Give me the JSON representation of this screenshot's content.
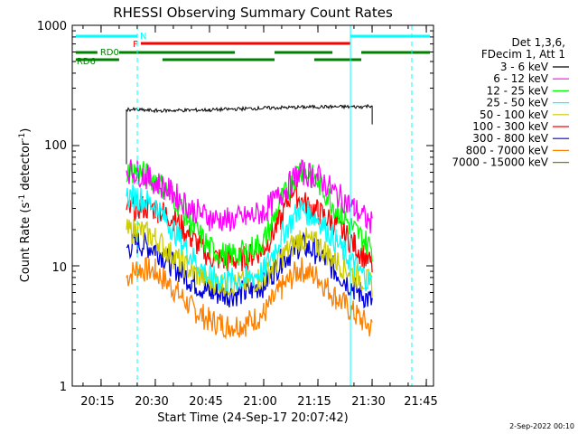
{
  "chart_data": {
    "type": "line",
    "title": "RHESSI Observing Summary Count Rates",
    "xlabel": "Start Time (24-Sep-17 20:07:42)",
    "ylabel_main": "Count Rate (s",
    "ylabel_sup1": "-1",
    "ylabel_mid": " detector",
    "ylabel_sup2": "-1",
    "ylabel_end": ")",
    "yscale": "log",
    "ylim": [
      1,
      1000
    ],
    "xlim_minutes": [
      20.117,
      21.783
    ],
    "x_ticks": [
      "20:15",
      "20:30",
      "20:45",
      "21:00",
      "21:15",
      "21:30",
      "21:45"
    ],
    "y_ticks": [
      "1",
      "10",
      "100",
      "1000"
    ],
    "legend_header": [
      "Det 1,3,6,",
      "FDecim 1, Att 1"
    ],
    "legend_position": "right",
    "series": [
      {
        "name": "3 - 6 keV",
        "color": "#000000",
        "points": [
          [
            20.367,
            70
          ],
          [
            20.367,
            200
          ],
          [
            20.5,
            195
          ],
          [
            20.75,
            198
          ],
          [
            21.0,
            205
          ],
          [
            21.25,
            210
          ],
          [
            21.45,
            210
          ],
          [
            21.5,
            215
          ],
          [
            21.5,
            150
          ]
        ]
      },
      {
        "name": "6 - 12 keV",
        "color": "#ff00ff",
        "points": [
          [
            20.367,
            62
          ],
          [
            20.417,
            60
          ],
          [
            20.5,
            50
          ],
          [
            20.583,
            40
          ],
          [
            20.667,
            30
          ],
          [
            20.75,
            25
          ],
          [
            20.833,
            24
          ],
          [
            20.917,
            25
          ],
          [
            21.0,
            28
          ],
          [
            21.083,
            40
          ],
          [
            21.167,
            60
          ],
          [
            21.25,
            55
          ],
          [
            21.333,
            40
          ],
          [
            21.417,
            30
          ],
          [
            21.5,
            22
          ]
        ]
      },
      {
        "name": "12 - 25 keV",
        "color": "#00ff00",
        "points": [
          [
            20.367,
            60
          ],
          [
            20.417,
            62
          ],
          [
            20.5,
            52
          ],
          [
            20.583,
            38
          ],
          [
            20.667,
            22
          ],
          [
            20.75,
            14
          ],
          [
            20.833,
            12
          ],
          [
            20.917,
            13
          ],
          [
            21.0,
            16
          ],
          [
            21.083,
            35
          ],
          [
            21.167,
            65
          ],
          [
            21.25,
            50
          ],
          [
            21.333,
            30
          ],
          [
            21.417,
            20
          ],
          [
            21.5,
            14
          ]
        ]
      },
      {
        "name": "25 - 50 keV",
        "color": "#00ffff",
        "points": [
          [
            20.367,
            38
          ],
          [
            20.417,
            37
          ],
          [
            20.5,
            32
          ],
          [
            20.583,
            20
          ],
          [
            20.667,
            12
          ],
          [
            20.75,
            8
          ],
          [
            20.833,
            7.5
          ],
          [
            20.917,
            7.8
          ],
          [
            21.0,
            9
          ],
          [
            21.083,
            18
          ],
          [
            21.167,
            30
          ],
          [
            21.25,
            25
          ],
          [
            21.333,
            16
          ],
          [
            21.417,
            10
          ],
          [
            21.5,
            7
          ]
        ]
      },
      {
        "name": "50 - 100 keV",
        "color": "#cccc00",
        "points": [
          [
            20.367,
            19
          ],
          [
            20.417,
            20
          ],
          [
            20.5,
            17
          ],
          [
            20.583,
            12
          ],
          [
            20.667,
            9
          ],
          [
            20.75,
            7.5
          ],
          [
            20.833,
            7
          ],
          [
            20.917,
            7.2
          ],
          [
            21.0,
            8
          ],
          [
            21.083,
            12
          ],
          [
            21.167,
            17
          ],
          [
            21.25,
            15
          ],
          [
            21.333,
            11
          ],
          [
            21.417,
            8.5
          ],
          [
            21.5,
            7
          ]
        ]
      },
      {
        "name": "100 - 300 keV",
        "color": "#ff0000",
        "points": [
          [
            20.367,
            28
          ],
          [
            20.417,
            31
          ],
          [
            20.5,
            30
          ],
          [
            20.583,
            25
          ],
          [
            20.667,
            17
          ],
          [
            20.75,
            12
          ],
          [
            20.833,
            11
          ],
          [
            20.917,
            11.5
          ],
          [
            21.0,
            14
          ],
          [
            21.083,
            25
          ],
          [
            21.133,
            44
          ],
          [
            21.167,
            35
          ],
          [
            21.25,
            28
          ],
          [
            21.333,
            22
          ],
          [
            21.417,
            15
          ],
          [
            21.5,
            10
          ]
        ]
      },
      {
        "name": "300 - 800 keV",
        "color": "#0000dd",
        "points": [
          [
            20.367,
            14
          ],
          [
            20.417,
            15.5
          ],
          [
            20.5,
            14
          ],
          [
            20.583,
            10
          ],
          [
            20.667,
            7.5
          ],
          [
            20.75,
            6
          ],
          [
            20.833,
            5.8
          ],
          [
            20.917,
            6
          ],
          [
            21.0,
            7
          ],
          [
            21.083,
            11
          ],
          [
            21.167,
            15
          ],
          [
            21.25,
            13
          ],
          [
            21.333,
            9
          ],
          [
            21.417,
            6.5
          ],
          [
            21.5,
            5
          ]
        ]
      },
      {
        "name": "800 - 7000 keV",
        "color": "#ff8000",
        "points": [
          [
            20.367,
            8
          ],
          [
            20.417,
            9.5
          ],
          [
            20.5,
            9
          ],
          [
            20.583,
            6.5
          ],
          [
            20.667,
            4.5
          ],
          [
            20.75,
            3.5
          ],
          [
            20.833,
            3.2
          ],
          [
            20.917,
            3.3
          ],
          [
            21.0,
            4
          ],
          [
            21.083,
            6.5
          ],
          [
            21.167,
            9.5
          ],
          [
            21.25,
            8
          ],
          [
            21.333,
            5.5
          ],
          [
            21.417,
            4
          ],
          [
            21.5,
            3
          ]
        ]
      },
      {
        "name": "7000 - 15000 keV",
        "color": "#808000",
        "points": []
      }
    ],
    "flags": [
      {
        "label": "N",
        "color": "#00ffff",
        "segments": [
          [
            20.133,
            20.417
          ],
          [
            21.4,
            21.767
          ]
        ],
        "level": 1
      },
      {
        "label": "F",
        "color": "#ff0000",
        "segments": [
          [
            20.433,
            21.4
          ]
        ],
        "level": 2
      },
      {
        "label": "RD0",
        "color": "#008000",
        "segments": [
          [
            20.133,
            20.233
          ],
          [
            20.333,
            20.867
          ],
          [
            21.05,
            21.317
          ],
          [
            21.45,
            21.767
          ]
        ],
        "level": 3
      },
      {
        "label": "RD6",
        "color": "#008000",
        "segments": [
          [
            20.133,
            20.333
          ],
          [
            20.533,
            21.05
          ],
          [
            21.233,
            21.45
          ]
        ],
        "level": 4
      }
    ],
    "vlines_solid": [
      20.117,
      21.4
    ],
    "vlines_dashed": [
      20.417,
      21.683
    ]
  },
  "footer_date": "2-Sep-2022 00:10"
}
